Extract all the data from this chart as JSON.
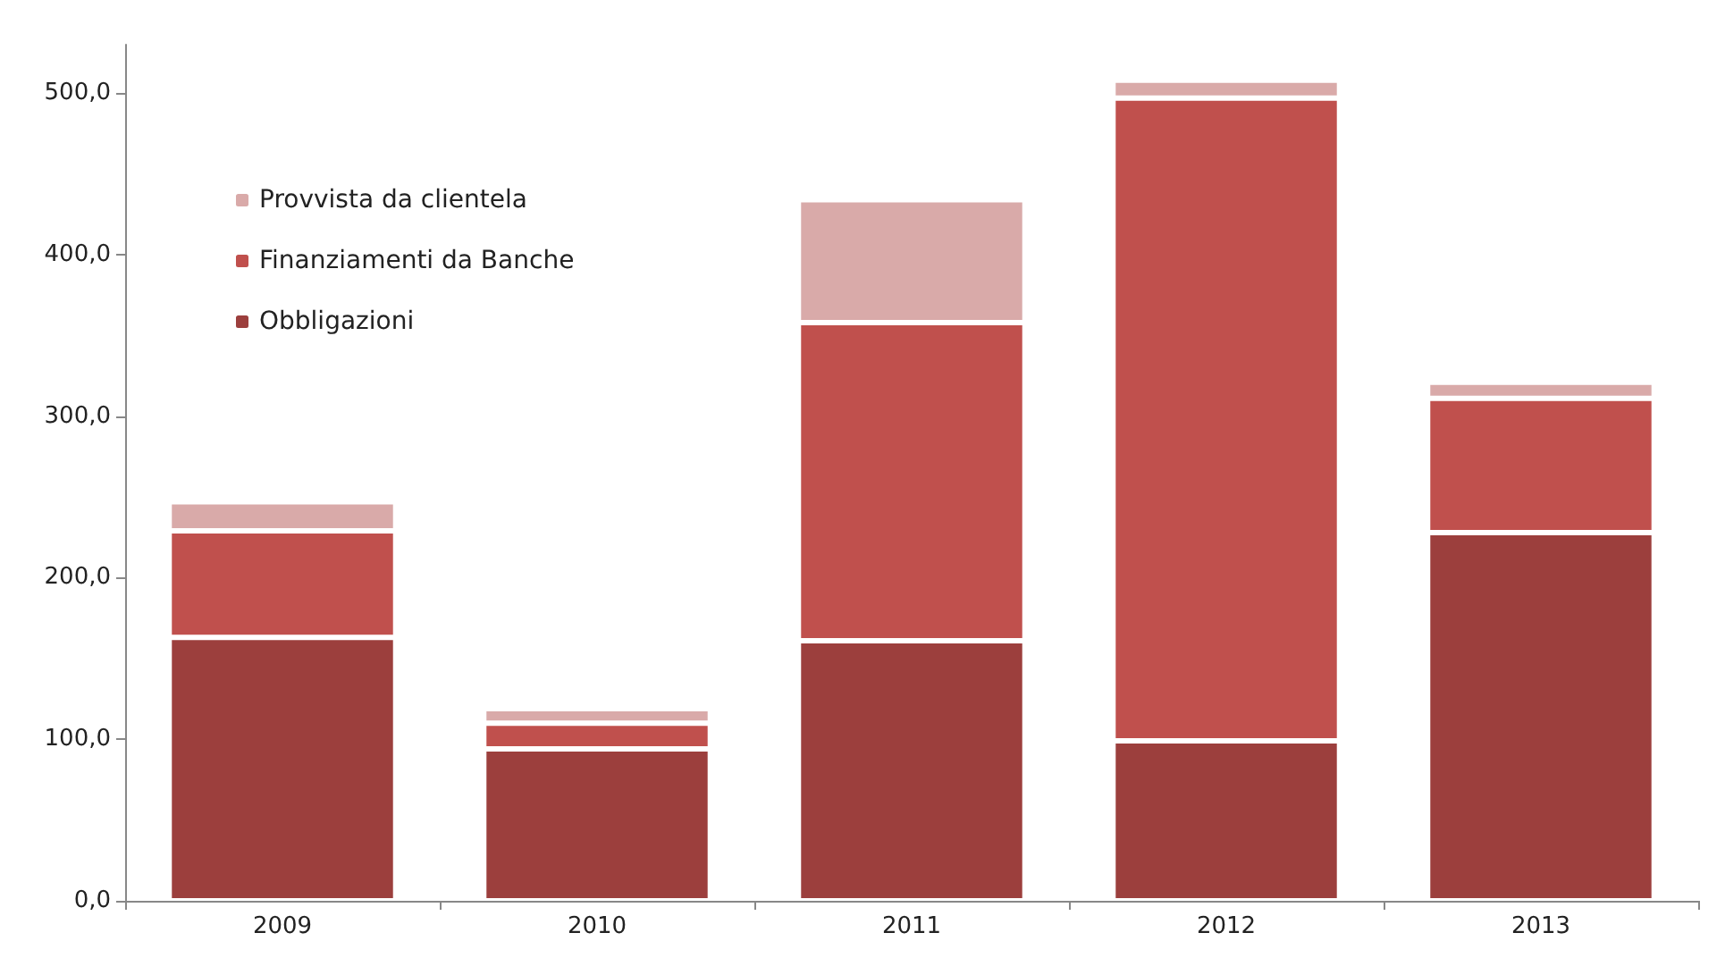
{
  "chart_data": {
    "type": "bar",
    "stacked": true,
    "categories": [
      "2009",
      "2010",
      "2011",
      "2012",
      "2013"
    ],
    "series": [
      {
        "name": "Obbligazioni",
        "color": "#9c3f3d",
        "values": [
          163,
          94,
          161,
          99,
          228
        ]
      },
      {
        "name": "Finanziamenti da Banche",
        "color": "#c0504d",
        "values": [
          66,
          16,
          197,
          398,
          83
        ]
      },
      {
        "name": "Provvista da clientela",
        "color": "#d9aaa9",
        "values": [
          18,
          9,
          76,
          11,
          10
        ]
      }
    ],
    "ylim": [
      0,
      530
    ],
    "yticks": [
      {
        "value": 0,
        "label": "0,0"
      },
      {
        "value": 100,
        "label": "100,0"
      },
      {
        "value": 200,
        "label": "200,0"
      },
      {
        "value": 300,
        "label": "300,0"
      },
      {
        "value": 400,
        "label": "400,0"
      },
      {
        "value": 500,
        "label": "500,0"
      }
    ],
    "grid": false,
    "legend": "top left"
  }
}
